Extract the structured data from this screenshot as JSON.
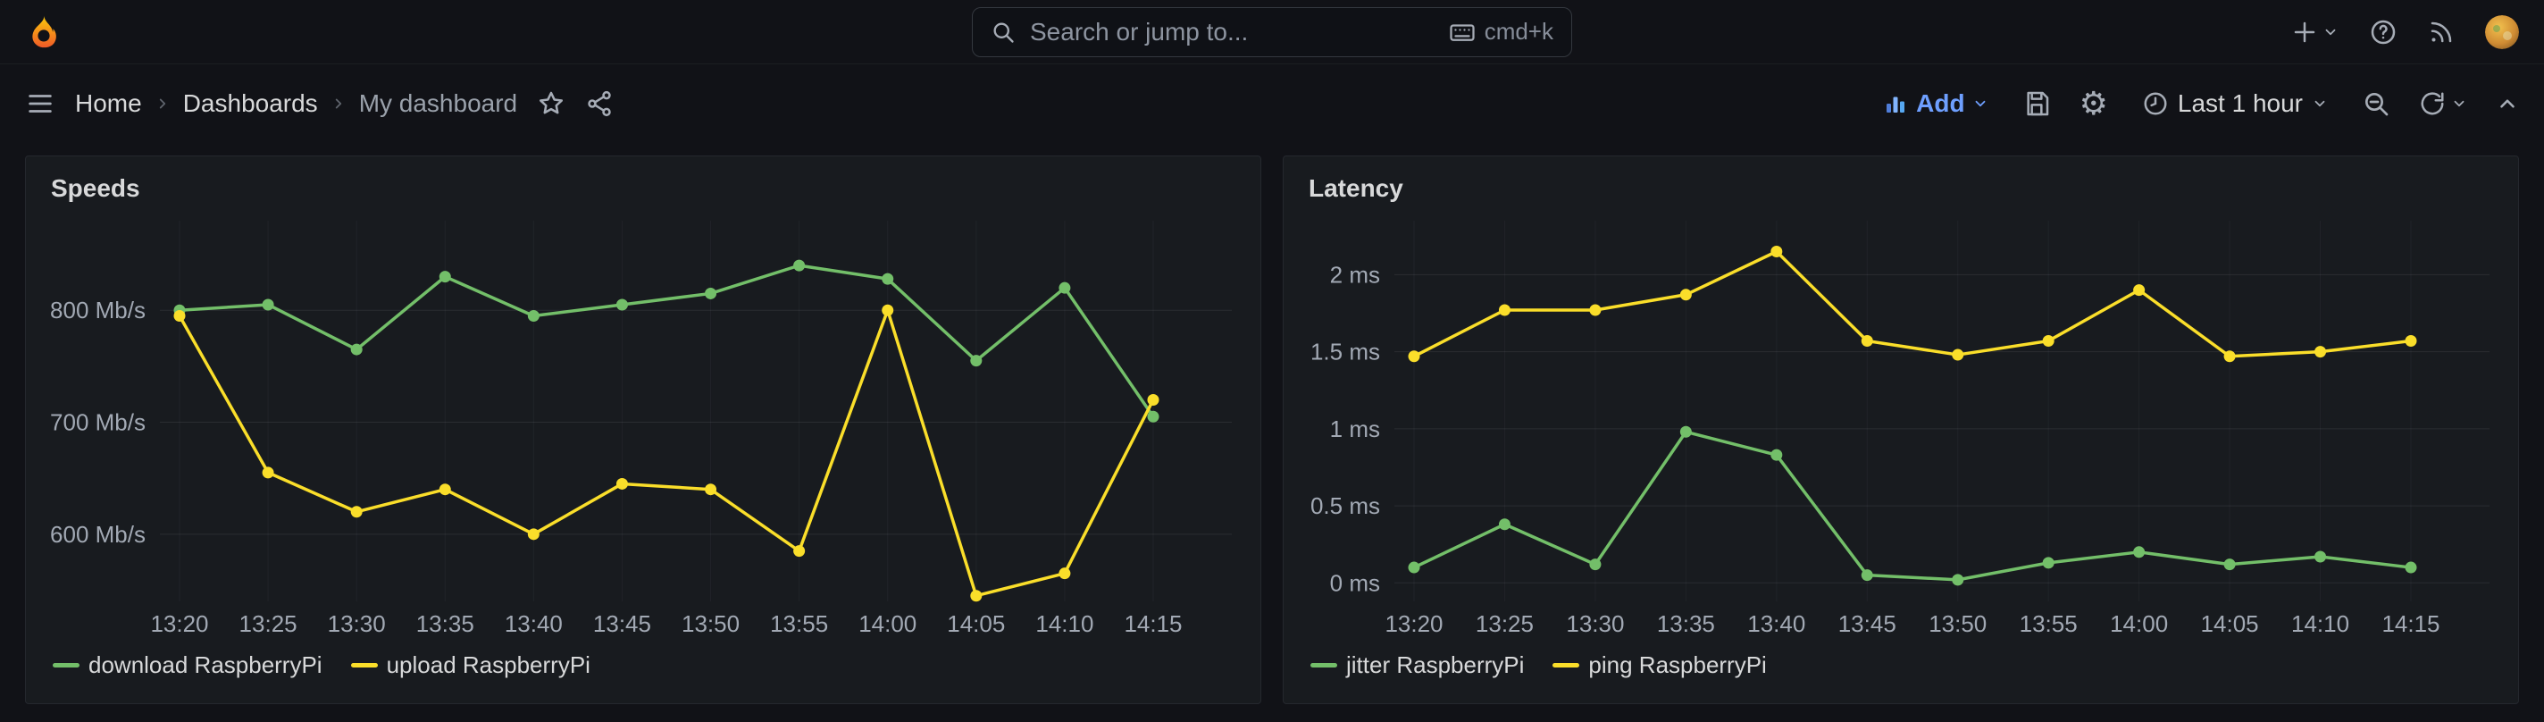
{
  "topbar": {
    "search": {
      "placeholder": "Search or jump to...",
      "shortcut": "cmd+k"
    }
  },
  "toolbar": {
    "breadcrumbs": [
      {
        "label": "Home"
      },
      {
        "label": "Dashboards"
      },
      {
        "label": "My dashboard"
      }
    ],
    "add_label": "Add",
    "time_range_label": "Last 1 hour"
  },
  "icons": {
    "gear_glyph": "⚙"
  },
  "colors": {
    "accent_blue": "#6e9fff",
    "series_green": "#73BF69",
    "series_yellow": "#FADE2A",
    "panel_bg": "#181b1f",
    "page_bg": "#111217"
  },
  "chart_data": [
    {
      "type": "line",
      "title": "Speeds",
      "x": [
        "13:20",
        "13:25",
        "13:30",
        "13:35",
        "13:40",
        "13:45",
        "13:50",
        "13:55",
        "14:00",
        "14:05",
        "14:10",
        "14:15"
      ],
      "series": [
        {
          "name": "download RaspberryPi",
          "color": "#73BF69",
          "values": [
            800,
            805,
            765,
            830,
            795,
            805,
            815,
            840,
            828,
            755,
            820,
            705
          ]
        },
        {
          "name": "upload RaspberryPi",
          "color": "#FADE2A",
          "values": [
            795,
            655,
            620,
            640,
            600,
            645,
            640,
            585,
            800,
            545,
            565,
            720
          ]
        }
      ],
      "yticks": [
        {
          "value": 600,
          "label": "600 Mb/s"
        },
        {
          "value": 700,
          "label": "700 Mb/s"
        },
        {
          "value": 800,
          "label": "800 Mb/s"
        }
      ],
      "ylim": [
        540,
        880
      ],
      "grid": true,
      "legend_position": "bottom-left"
    },
    {
      "type": "line",
      "title": "Latency",
      "x": [
        "13:20",
        "13:25",
        "13:30",
        "13:35",
        "13:40",
        "13:45",
        "13:50",
        "13:55",
        "14:00",
        "14:05",
        "14:10",
        "14:15"
      ],
      "series": [
        {
          "name": "jitter RaspberryPi",
          "color": "#73BF69",
          "values": [
            0.1,
            0.38,
            0.12,
            0.98,
            0.83,
            0.05,
            0.02,
            0.13,
            0.2,
            0.12,
            0.17,
            0.1
          ]
        },
        {
          "name": "ping RaspberryPi",
          "color": "#FADE2A",
          "values": [
            1.47,
            1.77,
            1.77,
            1.87,
            2.15,
            1.57,
            1.48,
            1.57,
            1.9,
            1.47,
            1.5,
            1.57
          ]
        }
      ],
      "yticks": [
        {
          "value": 0,
          "label": "0 ms"
        },
        {
          "value": 0.5,
          "label": "0.5 ms"
        },
        {
          "value": 1,
          "label": "1 ms"
        },
        {
          "value": 1.5,
          "label": "1.5 ms"
        },
        {
          "value": 2,
          "label": "2 ms"
        }
      ],
      "ylim": [
        -0.12,
        2.35
      ],
      "grid": true,
      "legend_position": "bottom-left"
    }
  ]
}
